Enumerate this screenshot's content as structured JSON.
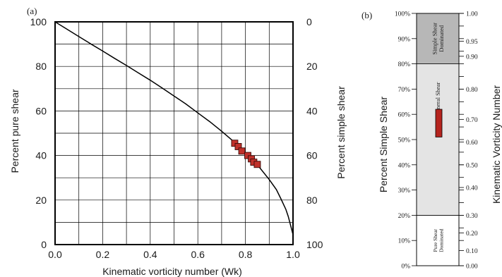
{
  "chart_data": [
    {
      "panel_label": "(a)",
      "type": "line",
      "xlabel": "Kinematic vorticity number (Wk)",
      "ylabel": "Percent pure shear",
      "y2label": "Percent simple shear",
      "xlim": [
        0.0,
        1.0
      ],
      "ylim": [
        0,
        100
      ],
      "y2lim": [
        100,
        0
      ],
      "grid": true,
      "x_tick_labels": [
        "0.0",
        "0.2",
        "0.4",
        "0.6",
        "0.8",
        "1.0"
      ],
      "y_tick_labels": [
        "0",
        "20",
        "40",
        "60",
        "80",
        "100"
      ],
      "y2_tick_labels": [
        "100",
        "80",
        "60",
        "40",
        "20",
        "0"
      ],
      "series": [
        {
          "kind": "line",
          "color": "#000000",
          "x": [
            0.0,
            0.05,
            0.1,
            0.15,
            0.2,
            0.25,
            0.3,
            0.35,
            0.4,
            0.45,
            0.5,
            0.55,
            0.6,
            0.65,
            0.7,
            0.75,
            0.8,
            0.85,
            0.9,
            0.93,
            0.95,
            0.97,
            0.98,
            0.99,
            1.0
          ],
          "y": [
            100,
            96.7,
            93.4,
            90.1,
            86.9,
            83.6,
            80.4,
            77.1,
            73.8,
            70.3,
            66.7,
            63.1,
            59.1,
            55.2,
            50.9,
            46.3,
            41.3,
            35.9,
            29.2,
            24.7,
            20.4,
            15.8,
            12.6,
            8.6,
            4.5
          ]
        },
        {
          "kind": "scatter",
          "marker": "square",
          "color": "#c0312b",
          "x": [
            0.755,
            0.77,
            0.785,
            0.81,
            0.825,
            0.835,
            0.85
          ],
          "y": [
            45.5,
            44.0,
            42.0,
            40.0,
            38.5,
            37.0,
            36.0
          ]
        }
      ]
    },
    {
      "panel_label": "(b)",
      "type": "bar",
      "ylabel": "Percent Simple Shear",
      "y2label": "Kinematic Vorticity Number",
      "ylim": [
        0,
        100
      ],
      "y_tick_labels": [
        "0%",
        "10%",
        "20%",
        "30%",
        "40%",
        "50%",
        "60%",
        "70%",
        "80%",
        "90%",
        "100%"
      ],
      "y2_tick_labels": [
        "0.00",
        "0.10",
        "0.20",
        "0.30",
        "0.40",
        "0.50",
        "0.60",
        "0.70",
        "0.80",
        "0.90",
        "0.95",
        "1.00"
      ],
      "y2_tick_positions": [
        0,
        10,
        15,
        20,
        25,
        30,
        35,
        40,
        45,
        50,
        55,
        60,
        65,
        70,
        75,
        80,
        85,
        90,
        95,
        100
      ],
      "y2_labeled_ticks": [
        {
          "pos": 0,
          "label": "0.00"
        },
        {
          "pos": 6,
          "label": "0.10"
        },
        {
          "pos": 13,
          "label": "0.20"
        },
        {
          "pos": 20,
          "label": "0.30"
        },
        {
          "pos": 31,
          "label": "0.40"
        },
        {
          "pos": 40,
          "label": "0.50"
        },
        {
          "pos": 49,
          "label": "0.60"
        },
        {
          "pos": 58,
          "label": "0.70"
        },
        {
          "pos": 70,
          "label": "0.80"
        },
        {
          "pos": 83,
          "label": "0.90"
        },
        {
          "pos": 89,
          "label": "0.95"
        },
        {
          "pos": 100,
          "label": "1.00"
        }
      ],
      "zones": [
        {
          "name": "Pure Shear Dominated",
          "from": 0,
          "to": 20,
          "fill": "#ffffff"
        },
        {
          "name": "General Shear",
          "from": 20,
          "to": 80,
          "fill": "#e4e4e4"
        },
        {
          "name": "Simple Shear Dominated",
          "from": 80,
          "to": 100,
          "fill": "#b7b7b7"
        }
      ],
      "highlight_range": {
        "from": 51,
        "to": 62,
        "color": "#b5231d"
      }
    }
  ]
}
